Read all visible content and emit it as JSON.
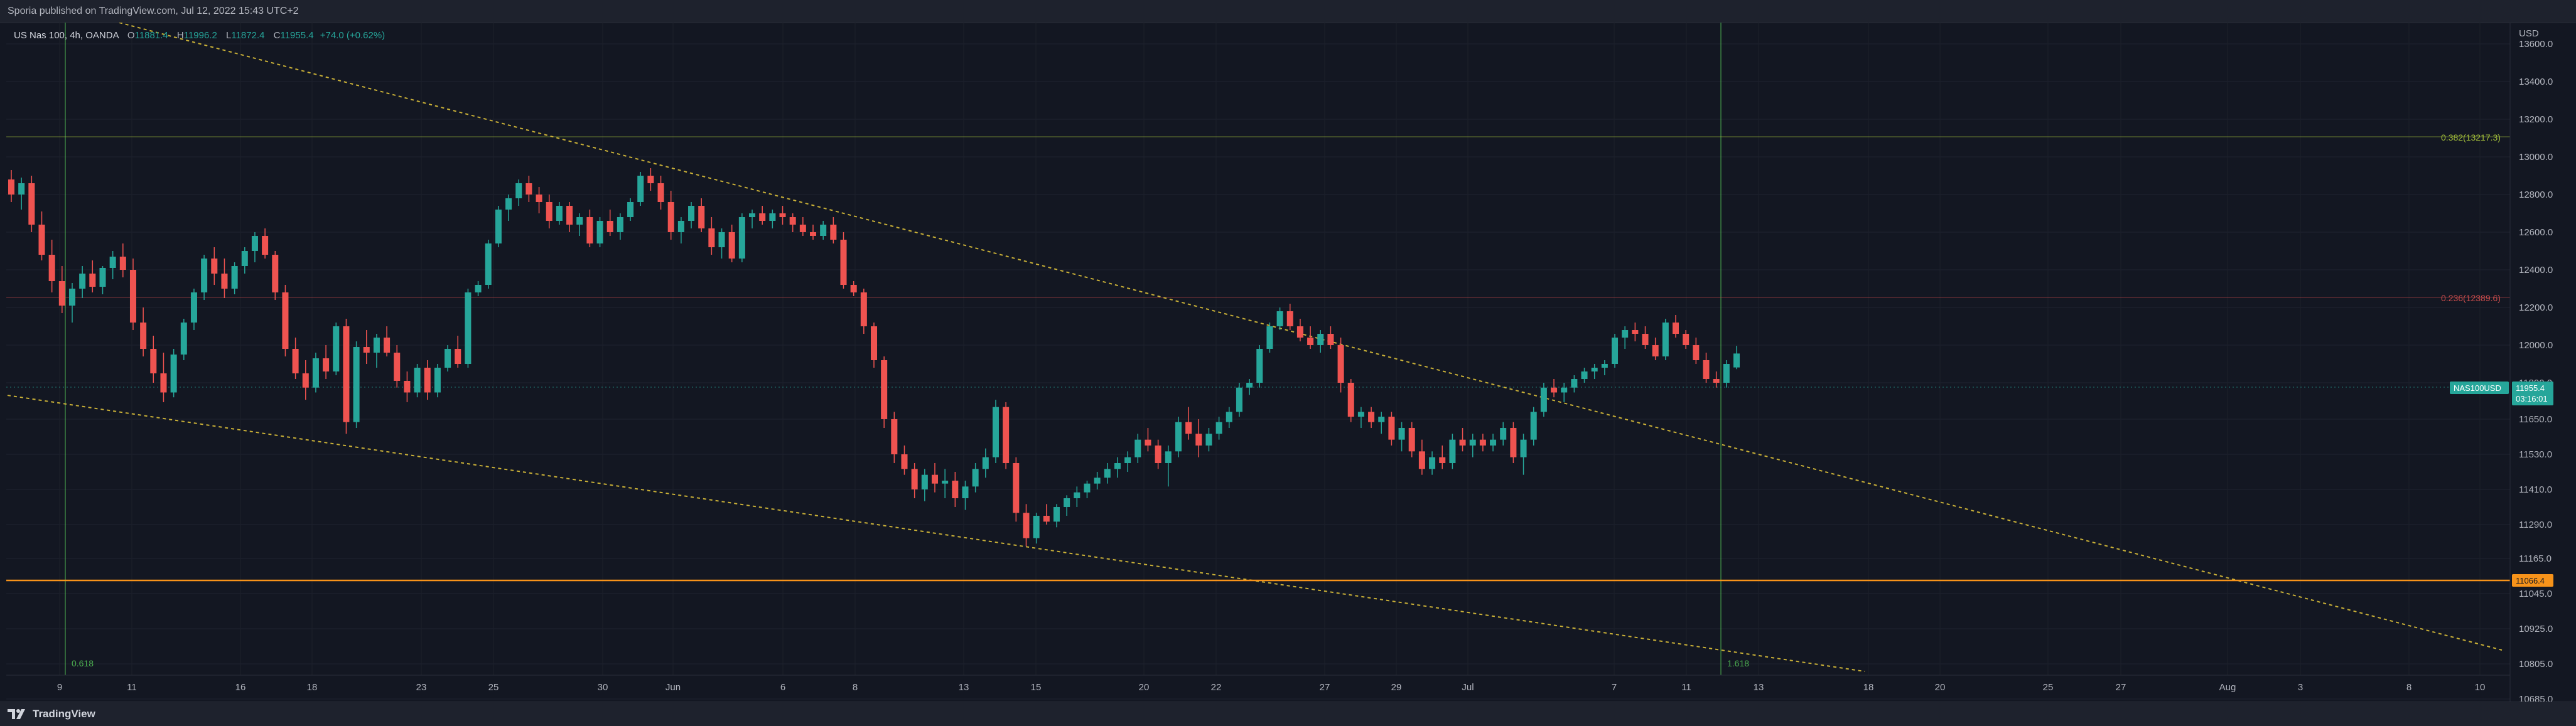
{
  "header": {
    "publisher_text": "Sporia published on TradingView.com, Jul 12, 2022 15:43 UTC+2"
  },
  "legend": {
    "symbol": "US Nas 100, 4h, OANDA",
    "open_label": "O",
    "open_value": "11881.4",
    "high_label": "H",
    "high_value": "11996.2",
    "low_label": "L",
    "low_value": "11872.4",
    "close_label": "C",
    "close_value": "11955.4",
    "change": "+74.0 (+0.62%)"
  },
  "price_axis": {
    "currency": "USD",
    "ticks": [
      "13600.0",
      "13400.0",
      "13200.0",
      "13000.0",
      "12800.0",
      "12600.0",
      "12400.0",
      "12200.0",
      "12000.0",
      "11800.0",
      "11650.0",
      "11530.0",
      "11410.0",
      "11290.0",
      "11165.0",
      "11045.0",
      "10925.0",
      "10805.0",
      "10685.0"
    ]
  },
  "time_axis": {
    "ticks": [
      "9",
      "11",
      "16",
      "18",
      "23",
      "25",
      "30",
      "Jun",
      "6",
      "8",
      "13",
      "15",
      "20",
      "22",
      "27",
      "29",
      "Jul",
      "7",
      "11",
      "13",
      "18",
      "20",
      "25",
      "27",
      "Aug",
      "3",
      "8",
      "10"
    ]
  },
  "annotations": {
    "fib_0382": "0.382(13217.3)",
    "fib_0236": "0.236(12389.6)",
    "fib_0618": "0.618",
    "fib_1618": "1.618",
    "current_symbol": "NAS100USD",
    "current_price": "11955.4",
    "countdown": "03:16:01",
    "support_price": "11066.4"
  },
  "colors": {
    "background": "#131722",
    "bullish": "#26a69a",
    "bearish": "#ef5350",
    "trendline": "#c9b037",
    "support_line": "#f7931a",
    "fib_0382": "#a5c13a",
    "fib_0236": "#c94c4c",
    "vertical_marker": "#4caf50"
  },
  "footer": {
    "brand": "TradingView"
  },
  "chart_data": {
    "type": "candlestick",
    "title": "US Nas 100, 4h, OANDA",
    "ylabel": "USD",
    "ylim": [
      10620,
      13780
    ],
    "scale": "piecewise-linear per printed ticks",
    "candles_ohlc": [
      [
        12880,
        12930,
        12760,
        12800
      ],
      [
        12800,
        12890,
        12720,
        12860
      ],
      [
        12860,
        12900,
        12600,
        12640
      ],
      [
        12640,
        12710,
        12450,
        12480
      ],
      [
        12480,
        12560,
        12280,
        12340
      ],
      [
        12340,
        12420,
        12170,
        12210
      ],
      [
        12210,
        12330,
        12120,
        12300
      ],
      [
        12300,
        12420,
        12250,
        12380
      ],
      [
        12380,
        12450,
        12280,
        12310
      ],
      [
        12310,
        12420,
        12270,
        12410
      ],
      [
        12410,
        12500,
        12350,
        12470
      ],
      [
        12470,
        12540,
        12360,
        12400
      ],
      [
        12400,
        12460,
        12080,
        12120
      ],
      [
        12120,
        12200,
        11940,
        11980
      ],
      [
        11980,
        12050,
        11800,
        11850
      ],
      [
        11850,
        11960,
        11720,
        11760
      ],
      [
        11760,
        11980,
        11740,
        11950
      ],
      [
        11950,
        12140,
        11920,
        12120
      ],
      [
        12120,
        12300,
        12080,
        12280
      ],
      [
        12280,
        12480,
        12240,
        12460
      ],
      [
        12460,
        12520,
        12320,
        12380
      ],
      [
        12380,
        12460,
        12250,
        12300
      ],
      [
        12300,
        12440,
        12270,
        12420
      ],
      [
        12420,
        12520,
        12380,
        12500
      ],
      [
        12500,
        12600,
        12440,
        12580
      ],
      [
        12580,
        12620,
        12460,
        12480
      ],
      [
        12480,
        12500,
        12240,
        12280
      ],
      [
        12280,
        12320,
        11940,
        11980
      ],
      [
        11980,
        12040,
        11820,
        11850
      ],
      [
        11850,
        11920,
        11730,
        11780
      ],
      [
        11780,
        11960,
        11760,
        11930
      ],
      [
        11930,
        12000,
        11820,
        11860
      ],
      [
        11860,
        12120,
        11840,
        12100
      ],
      [
        12100,
        12140,
        11600,
        11640
      ],
      [
        11640,
        12020,
        11620,
        11990
      ],
      [
        11990,
        12080,
        11900,
        11960
      ],
      [
        11960,
        12060,
        11880,
        12040
      ],
      [
        12040,
        12100,
        11940,
        11960
      ],
      [
        11960,
        12000,
        11780,
        11810
      ],
      [
        11810,
        11860,
        11720,
        11760
      ],
      [
        11760,
        11900,
        11740,
        11880
      ],
      [
        11880,
        11920,
        11730,
        11760
      ],
      [
        11760,
        11900,
        11740,
        11880
      ],
      [
        11880,
        12000,
        11860,
        11980
      ],
      [
        11980,
        12050,
        11880,
        11900
      ],
      [
        11900,
        12300,
        11880,
        12280
      ],
      [
        12280,
        12340,
        12260,
        12320
      ],
      [
        12320,
        12560,
        12300,
        12540
      ],
      [
        12540,
        12740,
        12520,
        12720
      ],
      [
        12720,
        12800,
        12660,
        12780
      ],
      [
        12780,
        12880,
        12740,
        12860
      ],
      [
        12860,
        12900,
        12760,
        12800
      ],
      [
        12800,
        12840,
        12700,
        12760
      ],
      [
        12760,
        12800,
        12620,
        12660
      ],
      [
        12660,
        12760,
        12640,
        12740
      ],
      [
        12740,
        12760,
        12600,
        12640
      ],
      [
        12640,
        12700,
        12580,
        12680
      ],
      [
        12680,
        12720,
        12520,
        12540
      ],
      [
        12540,
        12680,
        12520,
        12660
      ],
      [
        12660,
        12720,
        12580,
        12600
      ],
      [
        12600,
        12700,
        12560,
        12680
      ],
      [
        12680,
        12780,
        12660,
        12760
      ],
      [
        12760,
        12920,
        12740,
        12900
      ],
      [
        12900,
        12940,
        12820,
        12860
      ],
      [
        12860,
        12900,
        12720,
        12760
      ],
      [
        12760,
        12820,
        12560,
        12600
      ],
      [
        12600,
        12680,
        12540,
        12660
      ],
      [
        12660,
        12760,
        12620,
        12740
      ],
      [
        12740,
        12780,
        12600,
        12620
      ],
      [
        12620,
        12680,
        12480,
        12520
      ],
      [
        12520,
        12620,
        12460,
        12600
      ],
      [
        12600,
        12640,
        12440,
        12460
      ],
      [
        12460,
        12700,
        12440,
        12680
      ],
      [
        12680,
        12720,
        12620,
        12700
      ],
      [
        12700,
        12740,
        12640,
        12660
      ],
      [
        12660,
        12720,
        12620,
        12700
      ],
      [
        12700,
        12740,
        12640,
        12680
      ],
      [
        12680,
        12700,
        12600,
        12640
      ],
      [
        12640,
        12680,
        12580,
        12600
      ],
      [
        12600,
        12640,
        12560,
        12580
      ],
      [
        12580,
        12660,
        12560,
        12640
      ],
      [
        12640,
        12680,
        12540,
        12560
      ],
      [
        12560,
        12600,
        12300,
        12320
      ],
      [
        12320,
        12340,
        12260,
        12280
      ],
      [
        12280,
        12300,
        12060,
        12100
      ],
      [
        12100,
        12120,
        11880,
        11920
      ],
      [
        11920,
        11940,
        11620,
        11650
      ],
      [
        11650,
        11680,
        11500,
        11530
      ],
      [
        11530,
        11560,
        11460,
        11480
      ],
      [
        11480,
        11500,
        11380,
        11410
      ],
      [
        11410,
        11480,
        11370,
        11460
      ],
      [
        11460,
        11500,
        11400,
        11430
      ],
      [
        11430,
        11480,
        11380,
        11440
      ],
      [
        11440,
        11470,
        11350,
        11380
      ],
      [
        11380,
        11440,
        11340,
        11420
      ],
      [
        11420,
        11500,
        11400,
        11480
      ],
      [
        11480,
        11550,
        11450,
        11520
      ],
      [
        11520,
        11730,
        11500,
        11700
      ],
      [
        11700,
        11720,
        11480,
        11500
      ],
      [
        11500,
        11520,
        11300,
        11330
      ],
      [
        11330,
        11360,
        11210,
        11240
      ],
      [
        11240,
        11330,
        11220,
        11320
      ],
      [
        11320,
        11360,
        11290,
        11300
      ],
      [
        11300,
        11360,
        11280,
        11350
      ],
      [
        11350,
        11390,
        11320,
        11380
      ],
      [
        11380,
        11420,
        11350,
        11400
      ],
      [
        11400,
        11440,
        11380,
        11430
      ],
      [
        11430,
        11470,
        11410,
        11450
      ],
      [
        11450,
        11500,
        11430,
        11480
      ],
      [
        11480,
        11520,
        11450,
        11500
      ],
      [
        11500,
        11540,
        11470,
        11520
      ],
      [
        11520,
        11600,
        11500,
        11580
      ],
      [
        11580,
        11620,
        11540,
        11560
      ],
      [
        11560,
        11580,
        11480,
        11500
      ],
      [
        11500,
        11560,
        11420,
        11540
      ],
      [
        11540,
        11660,
        11520,
        11640
      ],
      [
        11640,
        11700,
        11580,
        11600
      ],
      [
        11600,
        11650,
        11520,
        11560
      ],
      [
        11560,
        11620,
        11540,
        11600
      ],
      [
        11600,
        11660,
        11580,
        11640
      ],
      [
        11640,
        11700,
        11620,
        11680
      ],
      [
        11680,
        11800,
        11660,
        11780
      ],
      [
        11780,
        11820,
        11750,
        11800
      ],
      [
        11800,
        12000,
        11780,
        11980
      ],
      [
        11980,
        12120,
        11960,
        12100
      ],
      [
        12100,
        12200,
        12080,
        12180
      ],
      [
        12180,
        12220,
        12080,
        12100
      ],
      [
        12100,
        12140,
        12020,
        12040
      ],
      [
        12040,
        12100,
        11980,
        12000
      ],
      [
        12000,
        12080,
        11960,
        12060
      ],
      [
        12060,
        12100,
        11980,
        12000
      ],
      [
        12000,
        12040,
        11760,
        11800
      ],
      [
        11800,
        11820,
        11640,
        11660
      ],
      [
        11660,
        11700,
        11620,
        11680
      ],
      [
        11680,
        11700,
        11620,
        11640
      ],
      [
        11640,
        11680,
        11600,
        11660
      ],
      [
        11660,
        11680,
        11560,
        11580
      ],
      [
        11580,
        11640,
        11540,
        11620
      ],
      [
        11620,
        11640,
        11520,
        11540
      ],
      [
        11540,
        11580,
        11460,
        11480
      ],
      [
        11480,
        11540,
        11460,
        11520
      ],
      [
        11520,
        11560,
        11480,
        11500
      ],
      [
        11500,
        11600,
        11480,
        11580
      ],
      [
        11580,
        11620,
        11540,
        11560
      ],
      [
        11560,
        11600,
        11520,
        11580
      ],
      [
        11580,
        11600,
        11540,
        11560
      ],
      [
        11560,
        11600,
        11540,
        11580
      ],
      [
        11580,
        11640,
        11560,
        11620
      ],
      [
        11620,
        11640,
        11500,
        11520
      ],
      [
        11520,
        11600,
        11460,
        11580
      ],
      [
        11580,
        11700,
        11560,
        11680
      ],
      [
        11680,
        11800,
        11660,
        11780
      ],
      [
        11780,
        11820,
        11740,
        11760
      ],
      [
        11760,
        11800,
        11720,
        11780
      ],
      [
        11780,
        11840,
        11760,
        11820
      ],
      [
        11820,
        11880,
        11800,
        11860
      ],
      [
        11860,
        11900,
        11820,
        11880
      ],
      [
        11880,
        11920,
        11840,
        11900
      ],
      [
        11900,
        12060,
        11880,
        12040
      ],
      [
        12040,
        12100,
        11980,
        12080
      ],
      [
        12080,
        12120,
        12020,
        12060
      ],
      [
        12060,
        12100,
        11980,
        12000
      ],
      [
        12000,
        12040,
        11920,
        11940
      ],
      [
        11940,
        12140,
        11920,
        12120
      ],
      [
        12120,
        12160,
        12040,
        12060
      ],
      [
        12060,
        12080,
        11980,
        12000
      ],
      [
        12000,
        12040,
        11900,
        11920
      ],
      [
        11920,
        11960,
        11800,
        11820
      ],
      [
        11820,
        11860,
        11780,
        11800
      ],
      [
        11800,
        11920,
        11780,
        11900
      ],
      [
        11881.4,
        11996.2,
        11872.4,
        11955.4
      ]
    ],
    "levels": {
      "fib_0382": 13217.3,
      "fib_0236": 12389.6,
      "support": 11066.4,
      "last_close": 11955.4
    }
  }
}
